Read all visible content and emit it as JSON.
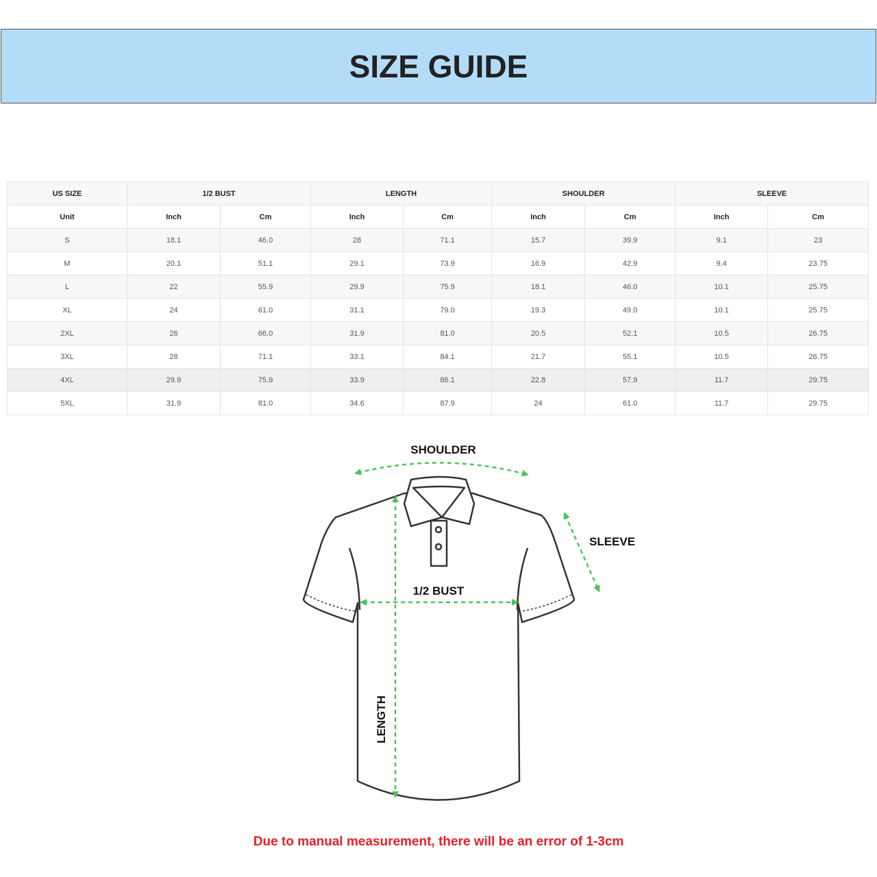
{
  "title": "SIZE GUIDE",
  "table": {
    "group_headers": [
      "US SIZE",
      "1/2 BUST",
      "LENGTH",
      "SHOULDER",
      "SLEEVE"
    ],
    "unit_row": [
      "Unit",
      "Inch",
      "Cm",
      "Inch",
      "Cm",
      "Inch",
      "Cm",
      "Inch",
      "Cm"
    ],
    "rows": [
      [
        "S",
        "18.1",
        "46.0",
        "28",
        "71.1",
        "15.7",
        "39.9",
        "9.1",
        "23"
      ],
      [
        "M",
        "20.1",
        "51.1",
        "29.1",
        "73.9",
        "16.9",
        "42.9",
        "9.4",
        "23.75"
      ],
      [
        "L",
        "22",
        "55.9",
        "29.9",
        "75.9",
        "18.1",
        "46.0",
        "10.1",
        "25.75"
      ],
      [
        "XL",
        "24",
        "61.0",
        "31.1",
        "79.0",
        "19.3",
        "49.0",
        "10.1",
        "25.75"
      ],
      [
        "2XL",
        "26",
        "66.0",
        "31.9",
        "81.0",
        "20.5",
        "52.1",
        "10.5",
        "26.75"
      ],
      [
        "3XL",
        "28",
        "71.1",
        "33.1",
        "84.1",
        "21.7",
        "55.1",
        "10.5",
        "26.75"
      ],
      [
        "4XL",
        "29.9",
        "75.9",
        "33.9",
        "86.1",
        "22.8",
        "57.9",
        "11.7",
        "29.75"
      ],
      [
        "5XL",
        "31.9",
        "81.0",
        "34.6",
        "87.9",
        "24",
        "61.0",
        "11.7",
        "29.75"
      ]
    ]
  },
  "diagram": {
    "shoulder": "SHOULDER",
    "sleeve": "SLEEVE",
    "bust": "1/2 BUST",
    "length": "LENGTH",
    "arrow_color": "#4cc25a"
  },
  "note": "Due to manual measurement, there will be an error of 1-3cm",
  "colors": {
    "banner": "#b3dcf9",
    "note": "#e8202a"
  }
}
